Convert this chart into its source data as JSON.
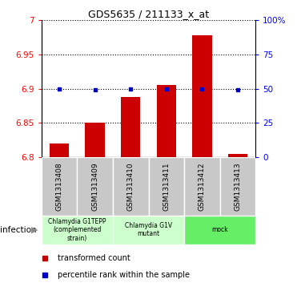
{
  "title": "GDS5635 / 211133_x_at",
  "samples": [
    "GSM1313408",
    "GSM1313409",
    "GSM1313410",
    "GSM1313411",
    "GSM1313412",
    "GSM1313413"
  ],
  "red_values": [
    6.82,
    6.85,
    6.888,
    6.905,
    6.978,
    6.805
  ],
  "blue_y_values": [
    6.9,
    6.898,
    6.9,
    6.9,
    6.9,
    6.898
  ],
  "ylim": [
    6.8,
    7.0
  ],
  "yticks_left": [
    6.8,
    6.85,
    6.9,
    6.95,
    7.0
  ],
  "yticks_left_labels": [
    "6.8",
    "6.85",
    "6.9",
    "6.95",
    "7"
  ],
  "yticks_right": [
    0,
    25,
    50,
    75,
    100
  ],
  "yticks_right_labels": [
    "0",
    "25",
    "50",
    "75",
    "100%"
  ],
  "group_colors": [
    "#ccffcc",
    "#ccffcc",
    "#66ee66"
  ],
  "group_ranges": [
    [
      0,
      1
    ],
    [
      2,
      3
    ],
    [
      4,
      5
    ]
  ],
  "group_labels": [
    "Chlamydia G1TEPP\n(complemented\nstrain)",
    "Chlamydia G1V\nmutant",
    "mock"
  ],
  "bar_color": "#cc0000",
  "dot_color": "#0000cc",
  "label_bg": "#c8c8c8",
  "infection_label": "infection"
}
